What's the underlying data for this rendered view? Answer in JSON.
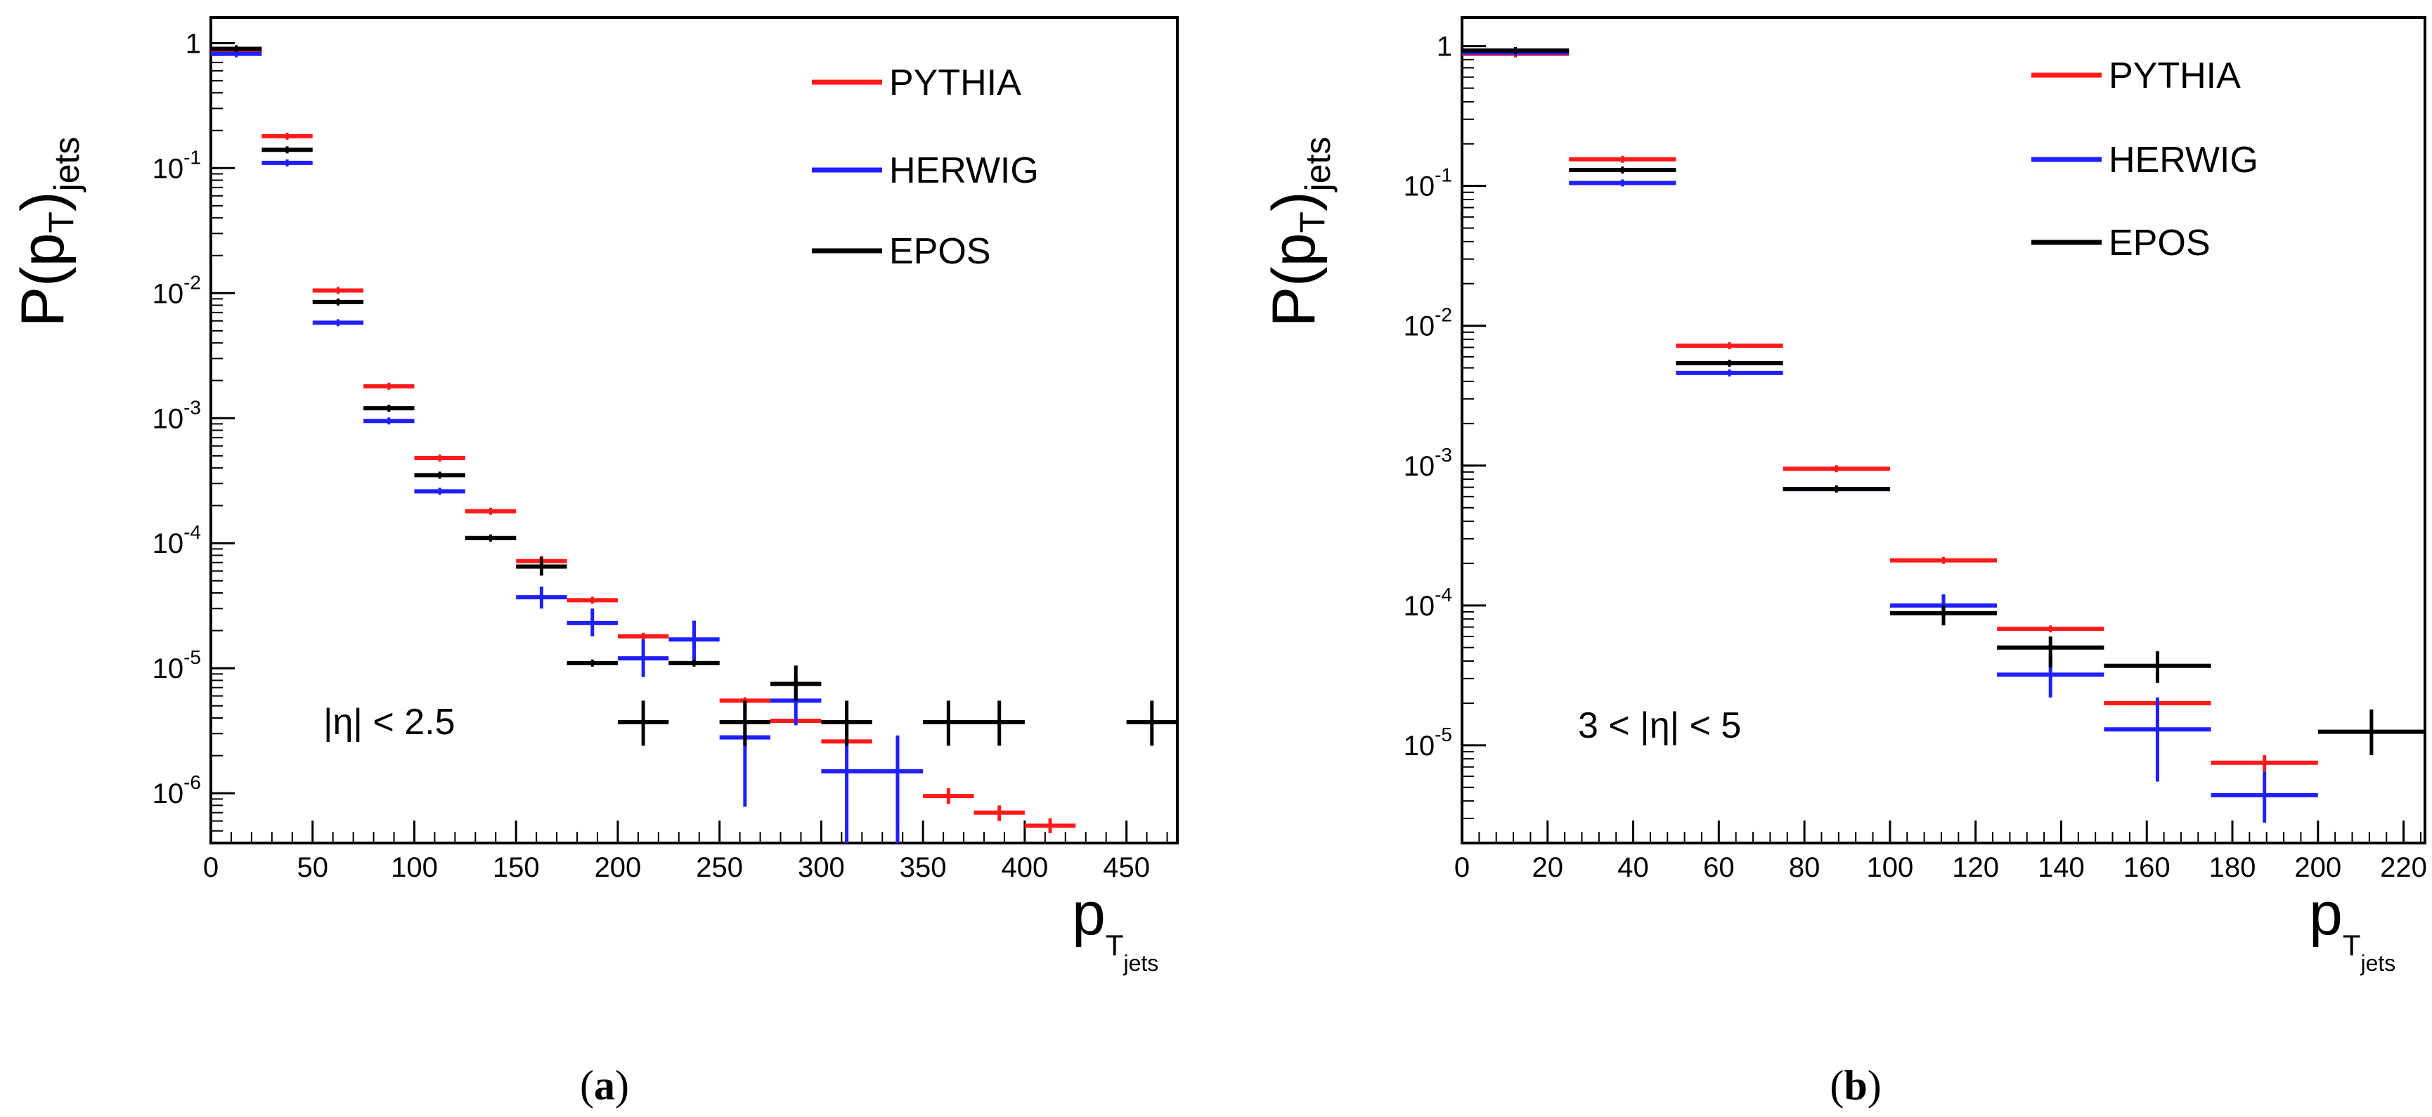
{
  "colors": {
    "PYTHIA": "#ff1a1a",
    "HERWIG": "#1f1fff",
    "EPOS": "#000000"
  },
  "chart_data": [
    {
      "id": "a",
      "type": "scatter",
      "caption": {
        "open": "(",
        "letter": "a",
        "close": ")"
      },
      "ylabel": {
        "main": "P(p",
        "sub": "T",
        "close": ")",
        "sub2": "jets"
      },
      "xlabel": {
        "main": "p",
        "sub": "T",
        "subsub": "jets"
      },
      "annotation": "|η| < 2.5",
      "xlim": [
        0,
        475
      ],
      "ylim": [
        4e-07,
        1.6
      ],
      "log_y": true,
      "x_ticks": [
        0,
        50,
        100,
        150,
        200,
        250,
        300,
        350,
        400,
        450
      ],
      "y_ticks": [
        {
          "v": 1,
          "base": "1",
          "exp": ""
        },
        {
          "v": 0.1,
          "base": "10",
          "exp": "-1"
        },
        {
          "v": 0.01,
          "base": "10",
          "exp": "-2"
        },
        {
          "v": 0.001,
          "base": "10",
          "exp": "-3"
        },
        {
          "v": 0.0001,
          "base": "10",
          "exp": "-4"
        },
        {
          "v": 1e-05,
          "base": "10",
          "exp": "-5"
        },
        {
          "v": 1e-06,
          "base": "10",
          "exp": "-6"
        }
      ],
      "legend": [
        "PYTHIA",
        "HERWIG",
        "EPOS"
      ],
      "series": [
        {
          "name": "PYTHIA",
          "points": [
            [
              0,
              25,
              0.85,
              0.85,
              0.85
            ],
            [
              25,
              50,
              0.18,
              0.18,
              0.18
            ],
            [
              50,
              75,
              0.0105,
              0.0105,
              0.0105
            ],
            [
              75,
              100,
              0.0018,
              0.0018,
              0.0018
            ],
            [
              100,
              125,
              0.00048,
              0.00048,
              0.00048
            ],
            [
              125,
              150,
              0.00018,
              0.00018,
              0.00018
            ],
            [
              150,
              175,
              7.2e-05,
              6.5e-05,
              7.9e-05
            ],
            [
              175,
              200,
              3.5e-05,
              3.5e-05,
              3.5e-05
            ],
            [
              200,
              225,
              1.8e-05,
              1.8e-05,
              1.8e-05
            ],
            [
              225,
              250,
              1.1e-05,
              1.1e-05,
              1.1e-05
            ],
            [
              250,
              275,
              5.5e-06,
              5.5e-06,
              5.5e-06
            ],
            [
              275,
              300,
              3.8e-06,
              3.8e-06,
              3.8e-06
            ],
            [
              300,
              325,
              2.6e-06,
              2.6e-06,
              2.6e-06
            ],
            [
              325,
              350,
              1.5e-06,
              1.5e-06,
              1.5e-06
            ],
            [
              350,
              375,
              9.5e-07,
              8.2e-07,
              1.1e-06
            ],
            [
              375,
              400,
              7e-07,
              6e-07,
              8e-07
            ],
            [
              400,
              425,
              5.5e-07,
              4.8e-07,
              6.3e-07
            ]
          ]
        },
        {
          "name": "HERWIG",
          "points": [
            [
              0,
              25,
              0.82,
              0.82,
              0.82
            ],
            [
              25,
              50,
              0.11,
              0.11,
              0.11
            ],
            [
              50,
              75,
              0.0058,
              0.0058,
              0.0058
            ],
            [
              75,
              100,
              0.00095,
              0.00095,
              0.00095
            ],
            [
              100,
              125,
              0.00026,
              0.00026,
              0.00026
            ],
            [
              125,
              150,
              0.00011,
              0.00011,
              0.00011
            ],
            [
              150,
              175,
              3.7e-05,
              3e-05,
              4.5e-05
            ],
            [
              175,
              200,
              2.3e-05,
              1.8e-05,
              3e-05
            ],
            [
              200,
              225,
              1.2e-05,
              8.5e-06,
              1.7e-05
            ],
            [
              225,
              250,
              1.7e-05,
              1.1e-05,
              2.4e-05
            ],
            [
              250,
              275,
              2.8e-06,
              7.8e-07,
              5.5e-06
            ],
            [
              275,
              300,
              5.5e-06,
              3.5e-06,
              8.5e-06
            ],
            [
              300,
              325,
              1.5e-06,
              4e-07,
              3.7e-06
            ],
            [
              325,
              350,
              1.5e-06,
              4e-07,
              2.9e-06
            ]
          ]
        },
        {
          "name": "EPOS",
          "points": [
            [
              0,
              25,
              0.9,
              0.9,
              0.9
            ],
            [
              25,
              50,
              0.14,
              0.14,
              0.14
            ],
            [
              50,
              75,
              0.0085,
              0.0085,
              0.0085
            ],
            [
              75,
              100,
              0.0012,
              0.0012,
              0.0012
            ],
            [
              100,
              125,
              0.00035,
              0.00035,
              0.00035
            ],
            [
              125,
              150,
              0.00011,
              0.00011,
              0.00011
            ],
            [
              150,
              175,
              6.5e-05,
              5.5e-05,
              7.7e-05
            ],
            [
              175,
              200,
              1.1e-05,
              1.1e-05,
              1.1e-05
            ],
            [
              200,
              225,
              3.7e-06,
              2.4e-06,
              5.5e-06
            ],
            [
              225,
              250,
              1.1e-05,
              1.1e-05,
              1.1e-05
            ],
            [
              250,
              275,
              3.7e-06,
              2.4e-06,
              5.5e-06
            ],
            [
              275,
              300,
              7.5e-06,
              5.5e-06,
              1.05e-05
            ],
            [
              300,
              325,
              3.7e-06,
              2.4e-06,
              5.5e-06
            ],
            [
              350,
              375,
              3.7e-06,
              2.4e-06,
              5.5e-06
            ],
            [
              375,
              400,
              3.7e-06,
              2.4e-06,
              5.5e-06
            ],
            [
              450,
              475,
              3.7e-06,
              2.4e-06,
              5.5e-06
            ]
          ]
        }
      ]
    },
    {
      "id": "b",
      "type": "scatter",
      "caption": {
        "open": "(",
        "letter": "b",
        "close": ")"
      },
      "ylabel": {
        "main": "P(p",
        "sub": "T",
        "close": ")",
        "sub2": "jets"
      },
      "xlabel": {
        "main": "p",
        "sub": "T",
        "subsub": "jets"
      },
      "annotation": "3 < |η| < 5",
      "xlim": [
        0,
        225
      ],
      "ylim": [
        2e-06,
        1.6
      ],
      "log_y": true,
      "x_ticks": [
        0,
        20,
        40,
        60,
        80,
        100,
        120,
        140,
        160,
        180,
        200,
        220
      ],
      "y_ticks": [
        {
          "v": 1,
          "base": "1",
          "exp": ""
        },
        {
          "v": 0.1,
          "base": "10",
          "exp": "-1"
        },
        {
          "v": 0.01,
          "base": "10",
          "exp": "-2"
        },
        {
          "v": 0.001,
          "base": "10",
          "exp": "-3"
        },
        {
          "v": 0.0001,
          "base": "10",
          "exp": "-4"
        },
        {
          "v": 1e-05,
          "base": "10",
          "exp": "-5"
        }
      ],
      "legend": [
        "PYTHIA",
        "HERWIG",
        "EPOS"
      ],
      "series": [
        {
          "name": "PYTHIA",
          "points": [
            [
              0,
              25,
              0.88,
              0.88,
              0.88
            ],
            [
              25,
              50,
              0.155,
              0.155,
              0.155
            ],
            [
              50,
              75,
              0.0072,
              0.0072,
              0.0072
            ],
            [
              75,
              100,
              0.00095,
              0.00095,
              0.00095
            ],
            [
              100,
              125,
              0.00021,
              0.00021,
              0.00021
            ],
            [
              125,
              150,
              6.8e-05,
              6.8e-05,
              6.8e-05
            ],
            [
              150,
              175,
              2e-05,
              2e-05,
              2e-05
            ],
            [
              175,
              200,
              7.5e-06,
              6.5e-06,
              8.5e-06
            ]
          ]
        },
        {
          "name": "HERWIG",
          "points": [
            [
              0,
              25,
              0.9,
              0.9,
              0.9
            ],
            [
              25,
              50,
              0.105,
              0.105,
              0.105
            ],
            [
              50,
              75,
              0.0046,
              0.0046,
              0.0046
            ],
            [
              75,
              100,
              0.00068,
              0.00068,
              0.00068
            ],
            [
              100,
              125,
              0.0001,
              8.5e-05,
              0.00012
            ],
            [
              125,
              150,
              3.2e-05,
              2.2e-05,
              4.5e-05
            ],
            [
              150,
              175,
              1.3e-05,
              5.5e-06,
              2.2e-05
            ],
            [
              175,
              200,
              4.4e-06,
              2.8e-06,
              6.5e-06
            ]
          ]
        },
        {
          "name": "EPOS",
          "points": [
            [
              0,
              25,
              0.93,
              0.93,
              0.93
            ],
            [
              25,
              50,
              0.13,
              0.13,
              0.13
            ],
            [
              50,
              75,
              0.0054,
              0.0054,
              0.0054
            ],
            [
              75,
              100,
              0.00068,
              0.00068,
              0.00068
            ],
            [
              100,
              125,
              8.8e-05,
              7.2e-05,
              0.0001
            ],
            [
              125,
              150,
              5e-05,
              3.6e-05,
              6e-05
            ],
            [
              150,
              175,
              3.7e-05,
              2.8e-05,
              4.7e-05
            ],
            [
              200,
              225,
              1.25e-05,
              8.5e-06,
              1.8e-05
            ]
          ]
        }
      ]
    }
  ]
}
